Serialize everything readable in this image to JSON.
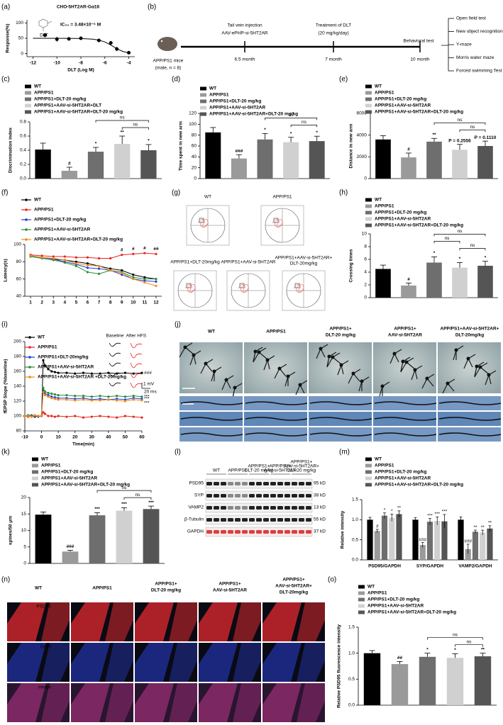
{
  "chart_data": [
    {
      "type": "scatter",
      "panel": "(a)",
      "title": "CHO-5HT2AR-Gα16",
      "annotation": "IC₅₀ = 3.48×10⁻⁶ M",
      "compound": "DLT",
      "xlabel": "DLT (Log M)",
      "ylabel": "Response(%)",
      "x": [
        -11,
        -10,
        -9,
        -8,
        -6.5,
        -5.5,
        -5,
        -4
      ],
      "values": [
        60,
        47,
        48,
        50,
        43,
        35,
        15,
        3
      ],
      "errors": [
        7,
        8,
        4,
        3,
        5,
        6,
        7,
        3
      ],
      "color": "#000000",
      "fit": {
        "x": [
          -12,
          -9,
          -8,
          -7,
          -6.5,
          -6,
          -5.5,
          -5,
          -4.5,
          -4
        ],
        "values": [
          50,
          49.8,
          49.2,
          47,
          44,
          38,
          28,
          16,
          7,
          2.5
        ]
      },
      "xlim": [
        -12.5,
        -3.5
      ],
      "xticks": [
        -12,
        -10,
        -8,
        -6,
        -4
      ],
      "ylim": [
        -10,
        110
      ],
      "yticks": [
        0,
        50,
        100
      ]
    },
    {
      "type": "bar",
      "panel": "(c)",
      "ylabel": "Discrimination index",
      "categories": [
        "WT",
        "APP/PS1",
        "APP/PS1+DLT-20 mg/kg",
        "APP/PS1+AAV-si-5HT2AR+DLT",
        "APP/PS1+AAV-si-5HT2AR+DLT-20 mg/kg"
      ],
      "colors": [
        "#000000",
        "#9a9a9a",
        "#6e6e6e",
        "#d0d0d0",
        "#555555"
      ],
      "values": [
        0.41,
        0.11,
        0.38,
        0.49,
        0.4
      ],
      "errors": [
        0.09,
        0.05,
        0.06,
        0.11,
        0.08
      ],
      "significance": [
        null,
        "#",
        "*",
        "**",
        "*"
      ],
      "brackets": [
        {
          "from": 2,
          "to": 4,
          "label": "ns"
        },
        {
          "from": 3,
          "to": 4,
          "label": "ns"
        }
      ],
      "ylim": [
        0,
        0.8
      ],
      "yticks": [
        {
          "value": 0,
          "label": "0.0"
        },
        0.2,
        0.4,
        0.6,
        0.8
      ]
    },
    {
      "type": "bar",
      "panel": "(d)",
      "ylabel": "Time spent in new arm",
      "categories": [
        "WT",
        "APP/PS1",
        "APP/PS1+DLT-20 mg/kg",
        "APP/PS1+AAV-si-5HT2AR",
        "APP/PS1+AAV-si-5HT2AR+DLT-20 mg/kg"
      ],
      "colors": [
        "#000000",
        "#9a9a9a",
        "#6e6e6e",
        "#d0d0d0",
        "#555555"
      ],
      "values": [
        85,
        37,
        72,
        67,
        69
      ],
      "errors": [
        9,
        7,
        11,
        9,
        9
      ],
      "significance": [
        null,
        "###",
        "*",
        "*",
        "*"
      ],
      "brackets": [
        {
          "from": 2,
          "to": 4,
          "label": "ns"
        },
        {
          "from": 3,
          "to": 4,
          "label": "ns"
        }
      ],
      "ylim": [
        0,
        120
      ],
      "yticks": [
        0,
        20,
        40,
        60,
        80,
        100,
        120
      ]
    },
    {
      "type": "bar",
      "panel": "(e)",
      "ylabel": "Distance in new arm",
      "categories": [
        "WT",
        "APP/PS1",
        "APP/PS1+DLT-20 mg/kg",
        "APP/PS1+AAV-si-5HT2AR",
        "APP/PS1+AAV-si-5HT2AR+DLT-20 mg/kg"
      ],
      "colors": [
        "#000000",
        "#9a9a9a",
        "#6e6e6e",
        "#d0d0d0",
        "#555555"
      ],
      "values": [
        3600,
        1950,
        3400,
        2650,
        3000
      ],
      "errors": [
        350,
        400,
        300,
        500,
        450
      ],
      "significance": [
        null,
        "#",
        "**",
        "P = 0.2556",
        "P = 0.1110"
      ],
      "brackets": [
        {
          "from": 2,
          "to": 4,
          "label": "ns"
        },
        {
          "from": 3,
          "to": 4,
          "label": "ns"
        }
      ],
      "ylim": [
        0,
        6000
      ],
      "yticks": [
        0,
        2000,
        4000,
        6000
      ]
    },
    {
      "type": "line",
      "panel": "(f)",
      "ylabel": "Latency(s)",
      "x": [
        1,
        2,
        3,
        4,
        5,
        6,
        7,
        8,
        9,
        10,
        11,
        12
      ],
      "xlim": [
        0.5,
        12.5
      ],
      "xticks": [
        1,
        2,
        3,
        4,
        5,
        6,
        7,
        8,
        9,
        10,
        11,
        12
      ],
      "ylim": [
        40,
        100
      ],
      "yticks": [
        40,
        60,
        80,
        100
      ],
      "series": [
        {
          "name": "WT",
          "color": "#000000",
          "values": [
            87,
            85,
            83,
            82,
            80,
            78,
            75,
            72,
            70,
            65,
            62,
            60
          ]
        },
        {
          "name": "APP/PS1",
          "color": "#e8251f",
          "values": [
            88,
            87,
            86,
            86,
            85,
            85,
            84,
            84,
            88,
            89,
            90,
            89
          ],
          "significance": [
            null,
            null,
            null,
            null,
            null,
            null,
            null,
            null,
            "#",
            "#",
            "#",
            "##"
          ]
        },
        {
          "name": "APP/PS1+DLT-20 mg/kg",
          "color": "#1f3fd6",
          "values": [
            87,
            85,
            83,
            80,
            77,
            73,
            72,
            70,
            65,
            60,
            58,
            57
          ]
        },
        {
          "name": "APP/PS1+AAV-si-5HT2AR",
          "color": "#2a8a3a",
          "values": [
            86,
            84,
            82,
            79,
            75,
            68,
            66,
            70,
            68,
            62,
            60,
            60
          ]
        },
        {
          "name": "APP/PS1+AAV-si-5HT2AR+DLT-20 mg/kg",
          "color": "#f08a1c",
          "values": [
            87,
            85,
            84,
            82,
            78,
            76,
            75,
            70,
            67,
            60,
            56,
            52
          ]
        }
      ]
    },
    {
      "type": "bar",
      "panel": "(h)",
      "ylabel": "Crossing times",
      "categories": [
        "WT",
        "APP/PS1",
        "APP/PS1+DLT-20 mg/kg",
        "APP/PS1+AAV-si-5HT2AR",
        "APP/PS1+AAV-si-5HT2AR+DLT-20 mg/kg"
      ],
      "colors": [
        "#000000",
        "#9a9a9a",
        "#6e6e6e",
        "#d0d0d0",
        "#555555"
      ],
      "values": [
        4.5,
        1.9,
        5.5,
        4.7,
        5.0
      ],
      "errors": [
        0.6,
        0.4,
        0.9,
        0.8,
        0.7
      ],
      "significance": [
        null,
        "#",
        "*",
        "*",
        "*"
      ],
      "brackets": [
        {
          "from": 2,
          "to": 4,
          "label": "ns"
        },
        {
          "from": 2,
          "to": 3,
          "label": "ns"
        },
        {
          "from": 3,
          "to": 4,
          "label": "ns"
        }
      ],
      "ylim": [
        0,
        10
      ],
      "yticks": [
        0,
        2,
        4,
        6,
        8,
        10
      ]
    },
    {
      "type": "line",
      "panel": "(i)",
      "ylabel": "fEPSP Slope (%baseline)",
      "xlabel": "Time(min)",
      "x": [
        -10,
        -8,
        -6,
        -4,
        -2,
        0,
        1,
        2,
        4,
        6,
        8,
        10,
        15,
        20,
        25,
        30,
        35,
        40,
        45,
        50,
        55,
        60
      ],
      "xlim": [
        -10,
        60
      ],
      "xticks": [
        -10,
        0,
        10,
        20,
        30,
        40,
        50,
        60
      ],
      "ylim": [
        80,
        200
      ],
      "yticks": [
        80,
        100,
        120,
        140,
        160,
        180,
        200
      ],
      "inset": {
        "baseline": "Baseline",
        "after": "After HFS",
        "mv": "1 mV",
        "ms": "20 ms"
      },
      "annotations": [
        {
          "text": "###",
          "series": 0
        },
        {
          "text": "***",
          "series": 2
        },
        {
          "text": "***",
          "series": 3
        },
        {
          "text": "***",
          "series": 4
        }
      ],
      "series": [
        {
          "name": "WT",
          "color": "#000000",
          "values": [
            100,
            101,
            100,
            99,
            100,
            100,
            175,
            168,
            163,
            160,
            159,
            158,
            158,
            157,
            158,
            157,
            157,
            158,
            157,
            158,
            157,
            158
          ]
        },
        {
          "name": "APP/PS1",
          "color": "#e8251f",
          "values": [
            100,
            99,
            100,
            101,
            100,
            100,
            105,
            103,
            100,
            100,
            99,
            100,
            99,
            100,
            98,
            99,
            100,
            99,
            98,
            100,
            99,
            98
          ]
        },
        {
          "name": "APP/PS1+DLT-20mg/kg",
          "color": "#1f3fd6",
          "values": [
            100,
            100,
            101,
            100,
            99,
            100,
            135,
            130,
            128,
            126,
            125,
            124,
            124,
            123,
            124,
            122,
            123,
            122,
            123,
            122,
            124,
            123
          ]
        },
        {
          "name": "APP/PS1+AAV-si-5HT2AR",
          "color": "#2a8a3a",
          "values": [
            100,
            101,
            100,
            100,
            100,
            100,
            138,
            133,
            131,
            130,
            129,
            128,
            128,
            127,
            127,
            126,
            127,
            126,
            127,
            126,
            127,
            126
          ]
        },
        {
          "name": "APP/PS1+AAV-si-5HT2AR +DLT-20mg/kg",
          "color": "#f08a1c",
          "values": [
            100,
            100,
            99,
            101,
            100,
            100,
            132,
            128,
            126,
            124,
            123,
            122,
            122,
            121,
            122,
            121,
            121,
            122,
            121,
            120,
            122,
            121
          ]
        }
      ]
    },
    {
      "type": "bar",
      "panel": "(k)",
      "ylabel": "spines/50 μm",
      "categories": [
        "WT",
        "APP/PS1",
        "APP/PS1+DLT-20 mg/kg",
        "APP/PS1+AAV-si-5HT2AR",
        "APP/PS1+AAV-si-5HT2AR+DLT-20 mg/kg"
      ],
      "colors": [
        "#000000",
        "#9a9a9a",
        "#6e6e6e",
        "#d0d0d0",
        "#555555"
      ],
      "values": [
        14.8,
        3.6,
        14.6,
        16.0,
        16.5
      ],
      "errors": [
        0.8,
        0.4,
        0.8,
        0.9,
        0.9
      ],
      "significance": [
        null,
        "###",
        "***",
        "***",
        "***"
      ],
      "brackets": [
        {
          "from": 2,
          "to": 4,
          "label": "ns"
        },
        {
          "from": 3,
          "to": 4,
          "label": "ns"
        }
      ],
      "ylim": [
        0,
        20
      ],
      "yticks": [
        0,
        5,
        10,
        15,
        20
      ]
    },
    {
      "type": "grouped_bar",
      "panel": "(m)",
      "ylabel": "Relative intensity",
      "categories": [
        "PSD95/GAPDH",
        "SYP/GAPDH",
        "VAMP2/GAPDH"
      ],
      "ylim": [
        0,
        1.5
      ],
      "yticks": [
        {
          "value": 0,
          "label": "0.0"
        },
        0.5,
        {
          "value": 1,
          "label": "1.0"
        },
        1.5
      ],
      "series": [
        {
          "name": "WT",
          "color": "#000000",
          "values": [
            1.0,
            1.0,
            1.0
          ],
          "errors": [
            0.06,
            0.05,
            0.07
          ]
        },
        {
          "name": "APP/PS1",
          "color": "#9a9a9a",
          "values": [
            0.72,
            0.37,
            0.27
          ],
          "errors": [
            0.04,
            0.06,
            0.12
          ],
          "significance": [
            "#",
            "###",
            "###"
          ]
        },
        {
          "name": "APP/PS1+DLT-20 mg/kg",
          "color": "#6e6e6e",
          "values": [
            1.1,
            0.95,
            0.7
          ],
          "errors": [
            0.07,
            0.08,
            0.04
          ],
          "significance": [
            "*",
            "***",
            "**"
          ]
        },
        {
          "name": "APP/PS1+AAV-si-5HT2AR",
          "color": "#d0d0d0",
          "values": [
            1.05,
            0.97,
            0.68
          ],
          "errors": [
            0.09,
            0.1,
            0.06
          ],
          "significance": [
            "*",
            "***",
            "**"
          ]
        },
        {
          "name": "APP/PS1+AAV-si-5HT2AR+DLT-20 mg/kg",
          "color": "#555555",
          "values": [
            1.14,
            0.96,
            0.78
          ],
          "errors": [
            0.08,
            0.17,
            0.07
          ],
          "significance": [
            "**",
            "***",
            "**"
          ]
        }
      ]
    },
    {
      "type": "bar",
      "panel": "(o)",
      "ylabel": "Relative PSD95 fluorescence intensity",
      "categories": [
        "WT",
        "APP/PS1",
        "APP/PS1+DLT-20 mg/kg",
        "APP/PS1+AAV-si-5HT2AR",
        "APP/PS1+AAV-si-5HT2AR+DLT-20 mg/kg"
      ],
      "colors": [
        "#000000",
        "#9a9a9a",
        "#6e6e6e",
        "#d0d0d0",
        "#555555"
      ],
      "values": [
        1.0,
        0.79,
        0.93,
        0.91,
        0.94
      ],
      "errors": [
        0.05,
        0.05,
        0.07,
        0.08,
        0.06
      ],
      "significance": [
        null,
        "##",
        "*",
        "*",
        "**"
      ],
      "brackets": [
        {
          "from": 2,
          "to": 4,
          "label": "ns"
        },
        {
          "from": 3,
          "to": 4,
          "label": "ns"
        }
      ],
      "ylim": [
        0,
        1.5
      ],
      "yticks": [
        {
          "value": 0,
          "label": "0.0"
        },
        0.5,
        {
          "value": 1,
          "label": "1.0"
        },
        1.5
      ]
    }
  ],
  "diagram": {
    "panel": "(b)",
    "mouse": "APP/PS1 mice",
    "mouse_note": "(male, n = 8)",
    "steps": [
      {
        "above": [
          "Tail vein injection",
          "AAV-ePHP-si-5HT2AR"
        ],
        "below": "6.5 month"
      },
      {
        "above": [
          "Treatment of DLT",
          "(20 mg/kg/day)"
        ],
        "below": "7 month"
      },
      {
        "above": [
          "Behavioral test"
        ],
        "below": "10 month"
      }
    ],
    "tests": [
      "Open field test",
      "New object recognition",
      "Y-maze",
      "Morris water maze",
      "Forced swimming Test"
    ]
  },
  "maze": {
    "panel": "(g)",
    "labels": [
      [
        "WT"
      ],
      [
        "APP/PS1"
      ],
      [
        "APP/PS1+DLT-20mg/kg"
      ],
      [
        "APP/PS1+AAV-si-5HT2AR"
      ],
      [
        "APP/PS1+AAV-si-5HT2AR+",
        "DLT-20mg/kg"
      ]
    ]
  },
  "spines": {
    "panel": "(j)",
    "columns": [
      [
        "WT"
      ],
      [
        "APP/PS1"
      ],
      [
        "APP/PS1+",
        "DLT-20 mg/kg"
      ],
      [
        "APP/PS1+",
        "AAV-si-5HT2AR"
      ],
      [
        "APP/PS1+AAV-si-5HT2AR+",
        "DLT-20mg/kg"
      ]
    ]
  },
  "blot": {
    "panel": "(l)",
    "groups": [
      [
        "WT"
      ],
      [
        "APP/PS1"
      ],
      [
        "APP/PS1+",
        "DLT-20 mg/kg"
      ],
      [
        "APP/PS1+",
        "AAV-si-5HT2AR"
      ],
      [
        "APP/PS1+",
        "AAV-si-5HT2AR+",
        "DLT-20 mg/kg"
      ]
    ],
    "rows": [
      {
        "name": "PSD95",
        "size": "95 kD"
      },
      {
        "name": "SYP",
        "size": "38 kD"
      },
      {
        "name": "VAMP2",
        "size": "13 kD"
      },
      {
        "name": "β-Tubulin",
        "size": "55 kD"
      },
      {
        "name": "GAPDH",
        "size": "37 kD"
      }
    ]
  },
  "immuno": {
    "panel": "(n)",
    "columns": [
      [
        "WT"
      ],
      [
        "APP/PS1"
      ],
      [
        "APP/PS1+",
        "DLT-20 mg/kg"
      ],
      [
        "APP/PS1+",
        "AAV-si-5HT2AR"
      ],
      [
        "APP/PS1+",
        "AAV-si-5HT2AR+",
        "DLT-20mg/kg"
      ]
    ],
    "channels": [
      "PSD95",
      "DAPI",
      "merge"
    ]
  }
}
